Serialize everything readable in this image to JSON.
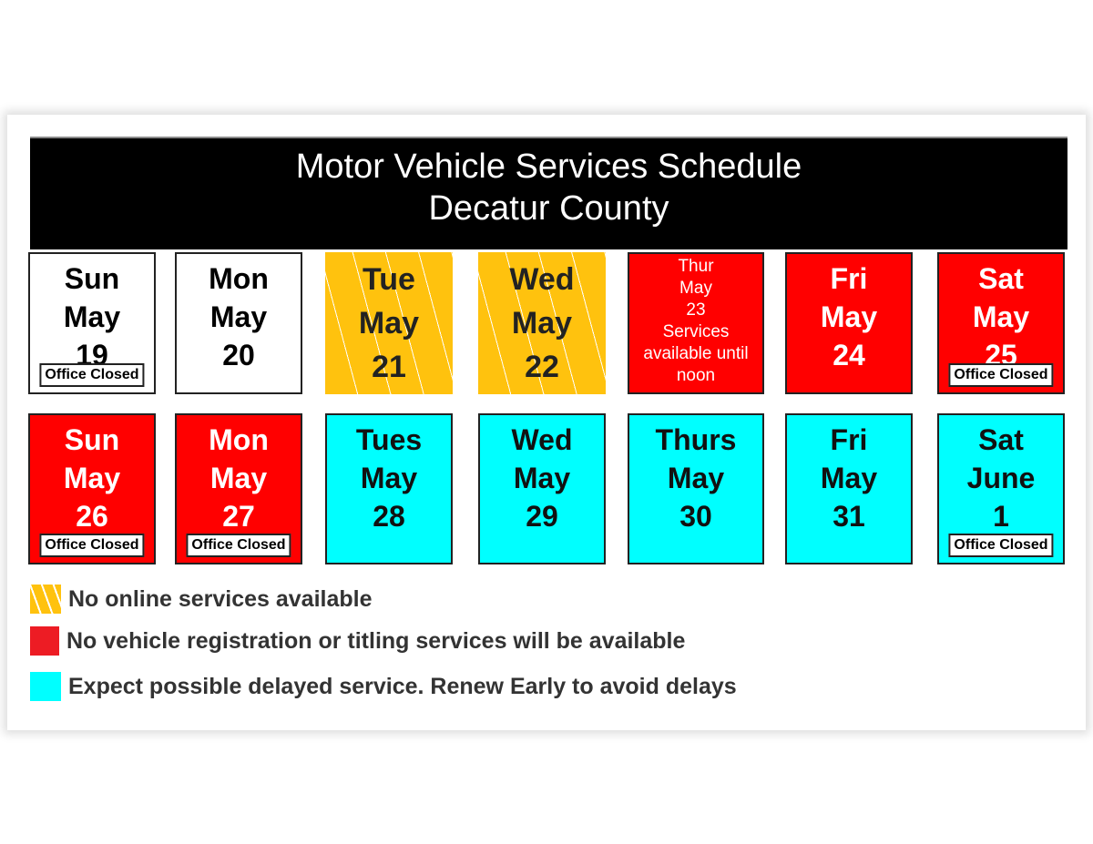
{
  "title": {
    "line1": "Motor Vehicle Services Schedule",
    "line2": "Decatur County"
  },
  "colors": {
    "no_online": "#ffc20e",
    "no_registration": "#ff0000",
    "delayed": "#00ffff"
  },
  "tiles": [
    {
      "lines": [
        "Sun",
        "May",
        "19"
      ],
      "status": "white",
      "note": "Office Closed"
    },
    {
      "lines": [
        "Mon",
        "May",
        "20"
      ],
      "status": "white",
      "note": null
    },
    {
      "lines": [
        "Tue",
        "May",
        "21"
      ],
      "status": "yellow",
      "note": null
    },
    {
      "lines": [
        "Wed",
        "May",
        "22"
      ],
      "status": "yellow",
      "note": null
    },
    {
      "lines": [
        "Thur",
        "May",
        "23",
        "Services",
        "available until",
        "noon"
      ],
      "status": "red",
      "note": null
    },
    {
      "lines": [
        "Fri",
        "May",
        "24"
      ],
      "status": "red",
      "note": null
    },
    {
      "lines": [
        "Sat",
        "May",
        "25"
      ],
      "status": "red",
      "note": "Office Closed"
    },
    {
      "lines": [
        "Sun",
        "May",
        "26"
      ],
      "status": "red",
      "note": "Office Closed"
    },
    {
      "lines": [
        "Mon",
        "May",
        "27"
      ],
      "status": "red",
      "note": "Office Closed"
    },
    {
      "lines": [
        "Tues",
        "May",
        "28"
      ],
      "status": "cyan",
      "note": null
    },
    {
      "lines": [
        "Wed",
        "May",
        "29"
      ],
      "status": "cyan",
      "note": null
    },
    {
      "lines": [
        "Thurs",
        "May",
        "30"
      ],
      "status": "cyan",
      "note": null
    },
    {
      "lines": [
        "Fri",
        "May",
        "31"
      ],
      "status": "cyan",
      "note": null
    },
    {
      "lines": [
        "Sat",
        "June",
        "1"
      ],
      "status": "cyan",
      "note": "Office Closed"
    }
  ],
  "legend": [
    {
      "swatch": "yellow-striped",
      "text": "No online services available"
    },
    {
      "swatch": "red",
      "text": "No vehicle registration or titling services will be available"
    },
    {
      "swatch": "cyan",
      "text": "Expect possible delayed service.  Renew Early to avoid delays"
    }
  ]
}
